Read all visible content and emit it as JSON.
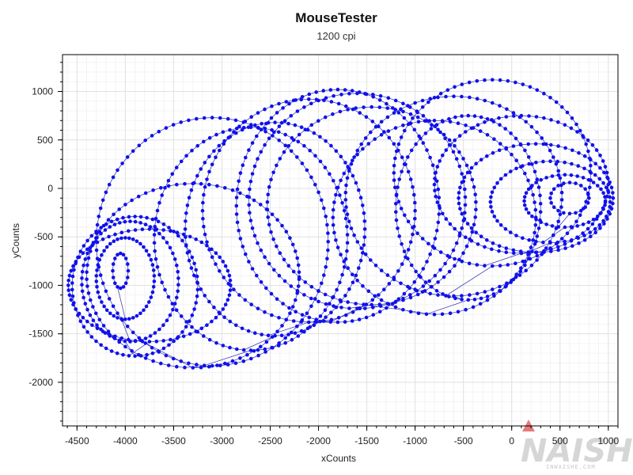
{
  "chart_data": {
    "type": "scatter",
    "title": "MouseTester",
    "subtitle": "1200 cpi",
    "xlabel": "xCounts",
    "ylabel": "yCounts",
    "xlim": [
      -4650,
      1100
    ],
    "ylim": [
      -2450,
      1380
    ],
    "xticks": [
      -4500,
      -4000,
      -3500,
      -3000,
      -2500,
      -2000,
      -1500,
      -1000,
      -500,
      0,
      500,
      1000
    ],
    "yticks": [
      1000,
      500,
      0,
      -500,
      -1000,
      -1500,
      -2000
    ],
    "xtick_labels": [
      "-4500",
      "-4000",
      "-3500",
      "-3000",
      "-2500",
      "-2000",
      "-1500",
      "-1000",
      "-500",
      "0",
      "500",
      "1000"
    ],
    "ytick_labels": [
      "1000",
      "500",
      "0",
      "-500",
      "-1000",
      "-1500",
      "-2000"
    ],
    "grid": true,
    "series_color": "#1010ee",
    "path_color": "#2a2ab0",
    "loops": [
      {
        "cx": -4050,
        "cy": -850,
        "rx": 80,
        "ry": 180,
        "n": 16
      },
      {
        "cx": -4000,
        "cy": -930,
        "rx": 300,
        "ry": 420,
        "n": 46
      },
      {
        "cx": -3950,
        "cy": -960,
        "rx": 500,
        "ry": 620,
        "n": 58
      },
      {
        "cx": -3900,
        "cy": -1010,
        "rx": 650,
        "ry": 720,
        "n": 66
      },
      {
        "cx": -3750,
        "cy": -1000,
        "rx": 840,
        "ry": 580,
        "n": 72
      },
      {
        "cx": -3300,
        "cy": -900,
        "rx": 1100,
        "ry": 950,
        "n": 82
      },
      {
        "cx": -3100,
        "cy": -550,
        "rx": 1200,
        "ry": 1280,
        "n": 92
      },
      {
        "cx": -2700,
        "cy": -520,
        "rx": 1000,
        "ry": 1150,
        "n": 86
      },
      {
        "cx": -2450,
        "cy": -420,
        "rx": 930,
        "ry": 1100,
        "n": 84
      },
      {
        "cx": -2100,
        "cy": -230,
        "rx": 1100,
        "ry": 1150,
        "n": 88
      },
      {
        "cx": -1800,
        "cy": -180,
        "rx": 1050,
        "ry": 1200,
        "n": 88
      },
      {
        "cx": -1600,
        "cy": -130,
        "rx": 1120,
        "ry": 1110,
        "n": 86
      },
      {
        "cx": -1450,
        "cy": -180,
        "rx": 1080,
        "ry": 1020,
        "n": 82
      },
      {
        "cx": -800,
        "cy": -300,
        "rx": 1050,
        "ry": 1000,
        "n": 80
      },
      {
        "cx": -450,
        "cy": -200,
        "rx": 750,
        "ry": 950,
        "n": 70
      },
      {
        "cx": -600,
        "cy": -80,
        "rx": 1120,
        "ry": 1030,
        "n": 86
      },
      {
        "cx": -200,
        "cy": 160,
        "rx": 1020,
        "ry": 960,
        "n": 80
      },
      {
        "cx": 100,
        "cy": 40,
        "rx": 900,
        "ry": 710,
        "n": 72
      },
      {
        "cx": 250,
        "cy": -100,
        "rx": 800,
        "ry": 560,
        "n": 64
      },
      {
        "cx": 400,
        "cy": -140,
        "rx": 620,
        "ry": 420,
        "n": 52
      },
      {
        "cx": 550,
        "cy": -130,
        "rx": 420,
        "ry": 270,
        "n": 40
      },
      {
        "cx": 600,
        "cy": -100,
        "rx": 200,
        "ry": 160,
        "n": 20
      }
    ]
  },
  "watermark": {
    "text": "NAISHE",
    "url": "INWAISHE.COM"
  }
}
